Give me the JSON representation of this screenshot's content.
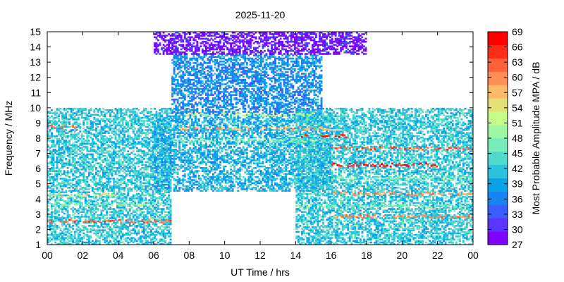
{
  "chart_data": {
    "type": "heatmap",
    "title": "2025-11-20",
    "xlabel": "UT Time / hrs",
    "ylabel": "Frequency / MHz",
    "xlim": [
      0,
      24
    ],
    "ylim": [
      1,
      15
    ],
    "x_ticks": [
      "00",
      "02",
      "04",
      "06",
      "08",
      "10",
      "12",
      "14",
      "16",
      "18",
      "20",
      "22",
      "00"
    ],
    "y_ticks": [
      "1",
      "2",
      "3",
      "4",
      "5",
      "6",
      "7",
      "8",
      "9",
      "10",
      "11",
      "12",
      "13",
      "14",
      "15"
    ],
    "grid": false,
    "colorbar": {
      "label": "Most Probable Amplitude MPA / dB",
      "range": [
        27,
        69
      ],
      "ticks": [
        "27",
        "30",
        "33",
        "36",
        "39",
        "42",
        "45",
        "48",
        "51",
        "54",
        "57",
        "60",
        "63",
        "66",
        "69"
      ],
      "colors": [
        "#7f00ff",
        "#5a35fd",
        "#3a5efb",
        "#1883f2",
        "#0aa3e8",
        "#2cc1dc",
        "#50dacb",
        "#76ecb8",
        "#9df9a1",
        "#c3fd88",
        "#e4df77",
        "#ffb96a",
        "#ff8f56",
        "#ff6138",
        "#ff2d17",
        "#ff0000"
      ]
    },
    "regions": [
      {
        "t": [
          0,
          7
        ],
        "f": [
          1,
          4.5
        ],
        "level": 42
      },
      {
        "t": [
          0,
          7
        ],
        "f": [
          4.5,
          10
        ],
        "level": 42
      },
      {
        "t": [
          6,
          16
        ],
        "f": [
          4.5,
          9.5
        ],
        "level": 40
      },
      {
        "t": [
          7,
          15.5
        ],
        "f": [
          9.5,
          13.5
        ],
        "level": 37
      },
      {
        "t": [
          6,
          18
        ],
        "f": [
          13.5,
          15
        ],
        "level": 29
      },
      {
        "t": [
          14,
          24
        ],
        "f": [
          1,
          10
        ],
        "level": 42
      }
    ],
    "bands": [
      {
        "t": [
          0,
          7
        ],
        "f": 2.5,
        "level": 63
      },
      {
        "t": [
          0,
          7
        ],
        "f": 3.6,
        "level": 48
      },
      {
        "t": [
          0,
          4
        ],
        "f": 4.2,
        "level": 54
      },
      {
        "t": [
          0,
          2
        ],
        "f": 8.7,
        "level": 60
      },
      {
        "t": [
          7,
          16
        ],
        "f": 8.6,
        "level": 57
      },
      {
        "t": [
          7,
          16
        ],
        "f": 7.8,
        "level": 48
      },
      {
        "t": [
          7,
          15
        ],
        "f": 9.5,
        "level": 51
      },
      {
        "t": [
          14,
          17
        ],
        "f": 8.1,
        "level": 66
      },
      {
        "t": [
          16,
          24
        ],
        "f": 7.3,
        "level": 63
      },
      {
        "t": [
          16,
          22
        ],
        "f": 6.2,
        "level": 66
      },
      {
        "t": [
          16,
          24
        ],
        "f": 4.3,
        "level": 60
      },
      {
        "t": [
          16,
          24
        ],
        "f": 2.8,
        "level": 60
      },
      {
        "t": [
          16,
          24
        ],
        "f": 5.3,
        "level": 48
      },
      {
        "t": [
          14,
          24
        ],
        "f": 3.5,
        "level": 48
      }
    ]
  }
}
